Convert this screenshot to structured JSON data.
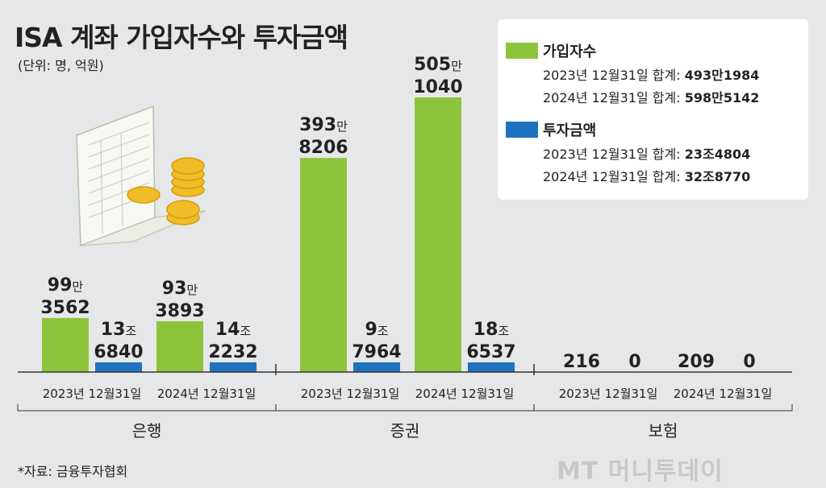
{
  "title": "ISA 계좌 가입자수와 투자금액",
  "unit": "(단위: 명, 억원)",
  "source": "*자료: 금융투자협회",
  "credit": "MT 머니투데이",
  "colors": {
    "subscribers": "#8ec43c",
    "investment": "#1f73be",
    "background": "#e6e7e9"
  },
  "legend": [
    {
      "name": "가입자수",
      "color": "#8ec43c",
      "lines": [
        {
          "label": "2023년 12월31일 합계:",
          "value": "493만1984"
        },
        {
          "label": "2024년 12월31일 합계:",
          "value": "598만5142"
        }
      ]
    },
    {
      "name": "투자금액",
      "color": "#1f73be",
      "lines": [
        {
          "label": "2023년 12월31일 합계:",
          "value": "23조4804"
        },
        {
          "label": "2024년 12월31일 합계:",
          "value": "32조8770"
        }
      ]
    }
  ],
  "chart_data": {
    "type": "bar",
    "groups": [
      "은행",
      "증권",
      "보험"
    ],
    "categories": [
      "2023년 12월31일",
      "2024년 12월31일"
    ],
    "series": [
      {
        "name": "가입자수",
        "unit": "명",
        "values": [
          [
            993562,
            933893
          ],
          [
            3938206,
            5051040
          ],
          [
            216,
            209
          ]
        ],
        "labels": [
          [
            "99만",
            "3562"
          ],
          [
            "93만",
            "3893"
          ],
          [
            "393만",
            "8206"
          ],
          [
            "505만",
            "1040"
          ],
          [
            "216"
          ],
          [
            "209"
          ]
        ]
      },
      {
        "name": "투자금액",
        "unit": "억원",
        "values": [
          [
            136840,
            142232
          ],
          [
            97964,
            186537
          ],
          [
            0,
            0
          ]
        ],
        "labels": [
          [
            "13조",
            "6840"
          ],
          [
            "14조",
            "2232"
          ],
          [
            "9조",
            "7964"
          ],
          [
            "18조",
            "6537"
          ],
          [
            "0"
          ],
          [
            "0"
          ]
        ]
      }
    ],
    "legend_position": "top-right",
    "grid": false
  }
}
